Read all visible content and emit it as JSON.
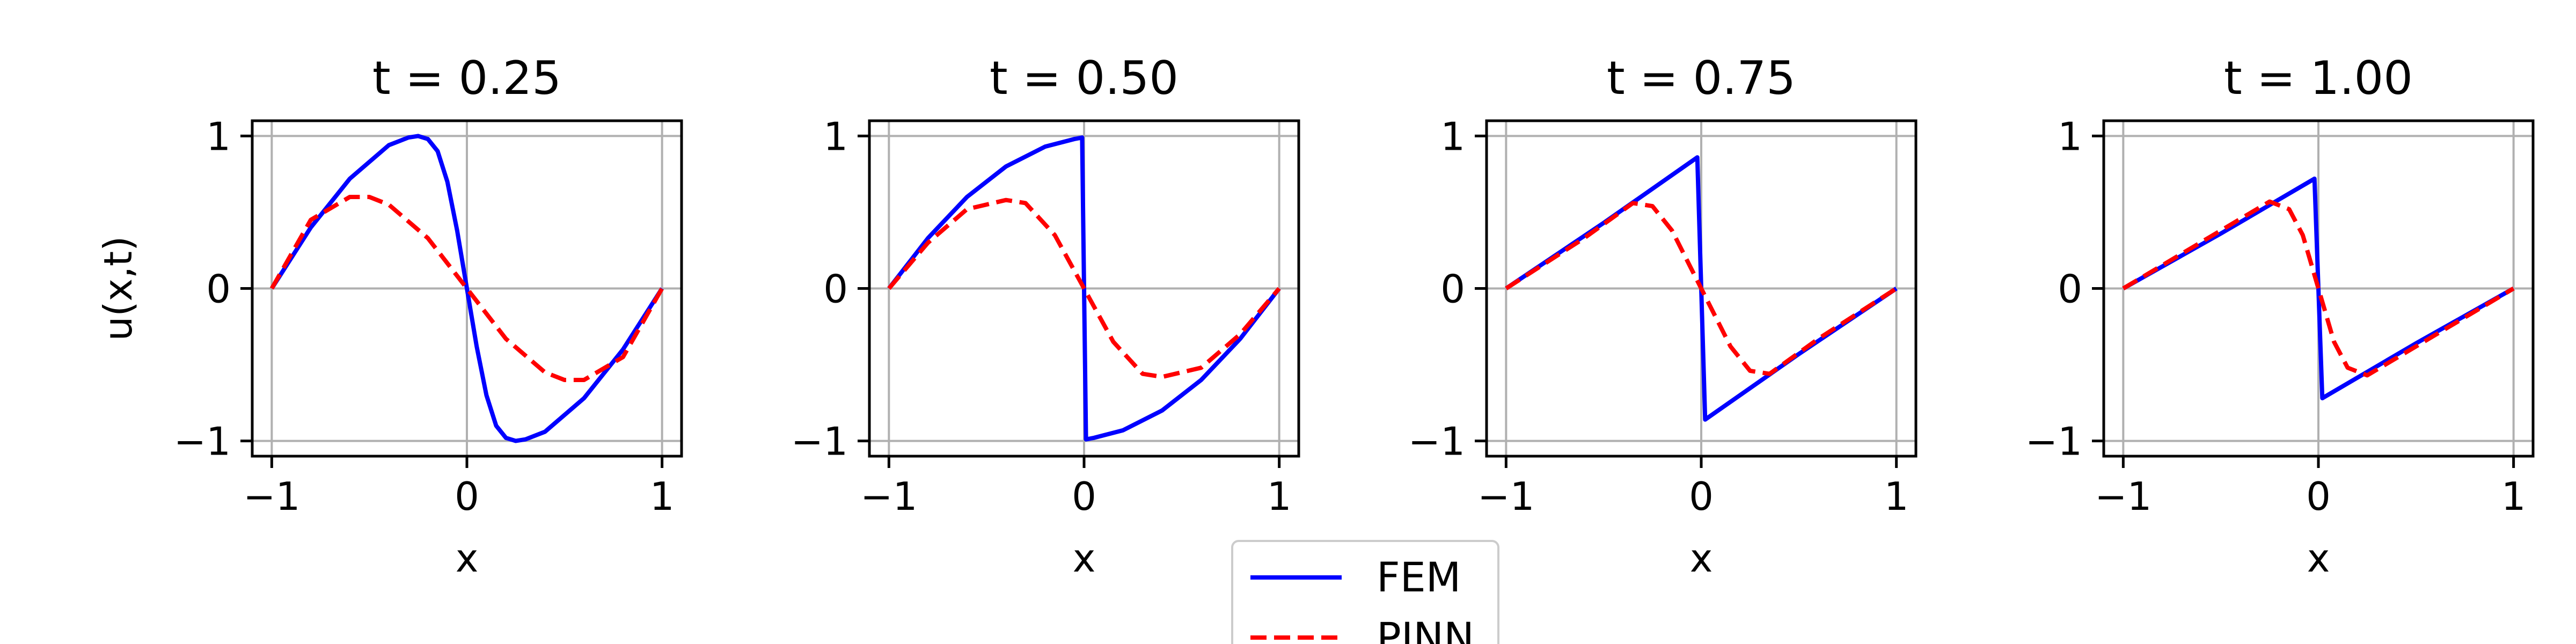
{
  "chart_data": [
    {
      "type": "line",
      "title": "t = 0.25",
      "xlabel": "x",
      "ylabel": "u(x,t)",
      "xlim": [
        -1,
        1
      ],
      "ylim": [
        -1,
        1
      ],
      "xticks": [
        -1,
        0,
        1
      ],
      "xtick_labels": [
        "−1",
        "0",
        "1"
      ],
      "yticks": [
        -1,
        0,
        1
      ],
      "ytick_labels": [
        "−1",
        "0",
        "1"
      ],
      "grid": true,
      "series": [
        {
          "name": "FEM",
          "color": "#0000ff",
          "style": "solid",
          "x": [
            -1,
            -0.8,
            -0.6,
            -0.4,
            -0.3,
            -0.25,
            -0.2,
            -0.15,
            -0.1,
            -0.05,
            0,
            0.05,
            0.1,
            0.15,
            0.2,
            0.25,
            0.3,
            0.4,
            0.6,
            0.8,
            1
          ],
          "y": [
            0,
            0.4,
            0.72,
            0.94,
            0.99,
            1.0,
            0.98,
            0.9,
            0.7,
            0.38,
            0,
            -0.38,
            -0.7,
            -0.9,
            -0.98,
            -1.0,
            -0.99,
            -0.94,
            -0.72,
            -0.4,
            0
          ]
        },
        {
          "name": "PINN",
          "color": "#ff0000",
          "style": "dashed",
          "x": [
            -1,
            -0.8,
            -0.6,
            -0.5,
            -0.4,
            -0.2,
            0,
            0.2,
            0.4,
            0.5,
            0.6,
            0.8,
            1
          ],
          "y": [
            0,
            0.45,
            0.6,
            0.6,
            0.55,
            0.33,
            0,
            -0.33,
            -0.55,
            -0.6,
            -0.6,
            -0.45,
            0
          ]
        }
      ]
    },
    {
      "type": "line",
      "title": "t = 0.50",
      "xlabel": "x",
      "ylabel": "",
      "xlim": [
        -1,
        1
      ],
      "ylim": [
        -1,
        1
      ],
      "xticks": [
        -1,
        0,
        1
      ],
      "xtick_labels": [
        "−1",
        "0",
        "1"
      ],
      "yticks": [
        -1,
        0,
        1
      ],
      "ytick_labels": [
        "−1",
        "0",
        "1"
      ],
      "grid": true,
      "series": [
        {
          "name": "FEM",
          "color": "#0000ff",
          "style": "solid",
          "x": [
            -1,
            -0.8,
            -0.6,
            -0.4,
            -0.2,
            -0.05,
            -0.01,
            0.01,
            0.05,
            0.2,
            0.4,
            0.6,
            0.8,
            1
          ],
          "y": [
            0,
            0.33,
            0.6,
            0.8,
            0.93,
            0.98,
            0.99,
            -0.99,
            -0.98,
            -0.93,
            -0.8,
            -0.6,
            -0.33,
            0
          ]
        },
        {
          "name": "PINN",
          "color": "#ff0000",
          "style": "dashed",
          "x": [
            -1,
            -0.8,
            -0.6,
            -0.4,
            -0.3,
            -0.15,
            0,
            0.15,
            0.3,
            0.4,
            0.6,
            0.8,
            1
          ],
          "y": [
            0,
            0.3,
            0.52,
            0.58,
            0.56,
            0.35,
            0,
            -0.35,
            -0.56,
            -0.58,
            -0.52,
            -0.3,
            0
          ]
        }
      ]
    },
    {
      "type": "line",
      "title": "t = 0.75",
      "xlabel": "x",
      "ylabel": "",
      "xlim": [
        -1,
        1
      ],
      "ylim": [
        -1,
        1
      ],
      "xticks": [
        -1,
        0,
        1
      ],
      "xtick_labels": [
        "−1",
        "0",
        "1"
      ],
      "yticks": [
        -1,
        0,
        1
      ],
      "ytick_labels": [
        "−1",
        "0",
        "1"
      ],
      "grid": true,
      "series": [
        {
          "name": "FEM",
          "color": "#0000ff",
          "style": "solid",
          "x": [
            -1,
            -0.5,
            -0.02,
            0.02,
            0.5,
            1
          ],
          "y": [
            0,
            0.43,
            0.86,
            -0.86,
            -0.43,
            0
          ]
        },
        {
          "name": "PINN",
          "color": "#ff0000",
          "style": "dashed",
          "x": [
            -1,
            -0.6,
            -0.35,
            -0.25,
            -0.15,
            0,
            0.15,
            0.25,
            0.35,
            0.6,
            1
          ],
          "y": [
            0,
            0.33,
            0.56,
            0.54,
            0.38,
            0,
            -0.38,
            -0.54,
            -0.56,
            -0.33,
            0
          ]
        }
      ]
    },
    {
      "type": "line",
      "title": "t = 1.00",
      "xlabel": "x",
      "ylabel": "",
      "xlim": [
        -1,
        1
      ],
      "ylim": [
        -1,
        1
      ],
      "xticks": [
        -1,
        0,
        1
      ],
      "xtick_labels": [
        "−1",
        "0",
        "1"
      ],
      "yticks": [
        -1,
        0,
        1
      ],
      "ytick_labels": [
        "−1",
        "0",
        "1"
      ],
      "grid": true,
      "series": [
        {
          "name": "FEM",
          "color": "#0000ff",
          "style": "solid",
          "x": [
            -1,
            -0.5,
            -0.02,
            0.02,
            0.5,
            1
          ],
          "y": [
            0,
            0.36,
            0.72,
            -0.72,
            -0.36,
            0
          ]
        },
        {
          "name": "PINN",
          "color": "#ff0000",
          "style": "dashed",
          "x": [
            -1,
            -0.5,
            -0.25,
            -0.15,
            -0.08,
            0,
            0.08,
            0.15,
            0.25,
            0.5,
            1
          ],
          "y": [
            0,
            0.38,
            0.57,
            0.52,
            0.35,
            0,
            -0.35,
            -0.52,
            -0.57,
            -0.38,
            0
          ]
        }
      ]
    }
  ],
  "legend": {
    "placement": "bottom-center",
    "entries": [
      {
        "label": "FEM",
        "color": "#0000ff",
        "style": "solid"
      },
      {
        "label": "PINN",
        "color": "#ff0000",
        "style": "dashed"
      }
    ]
  }
}
